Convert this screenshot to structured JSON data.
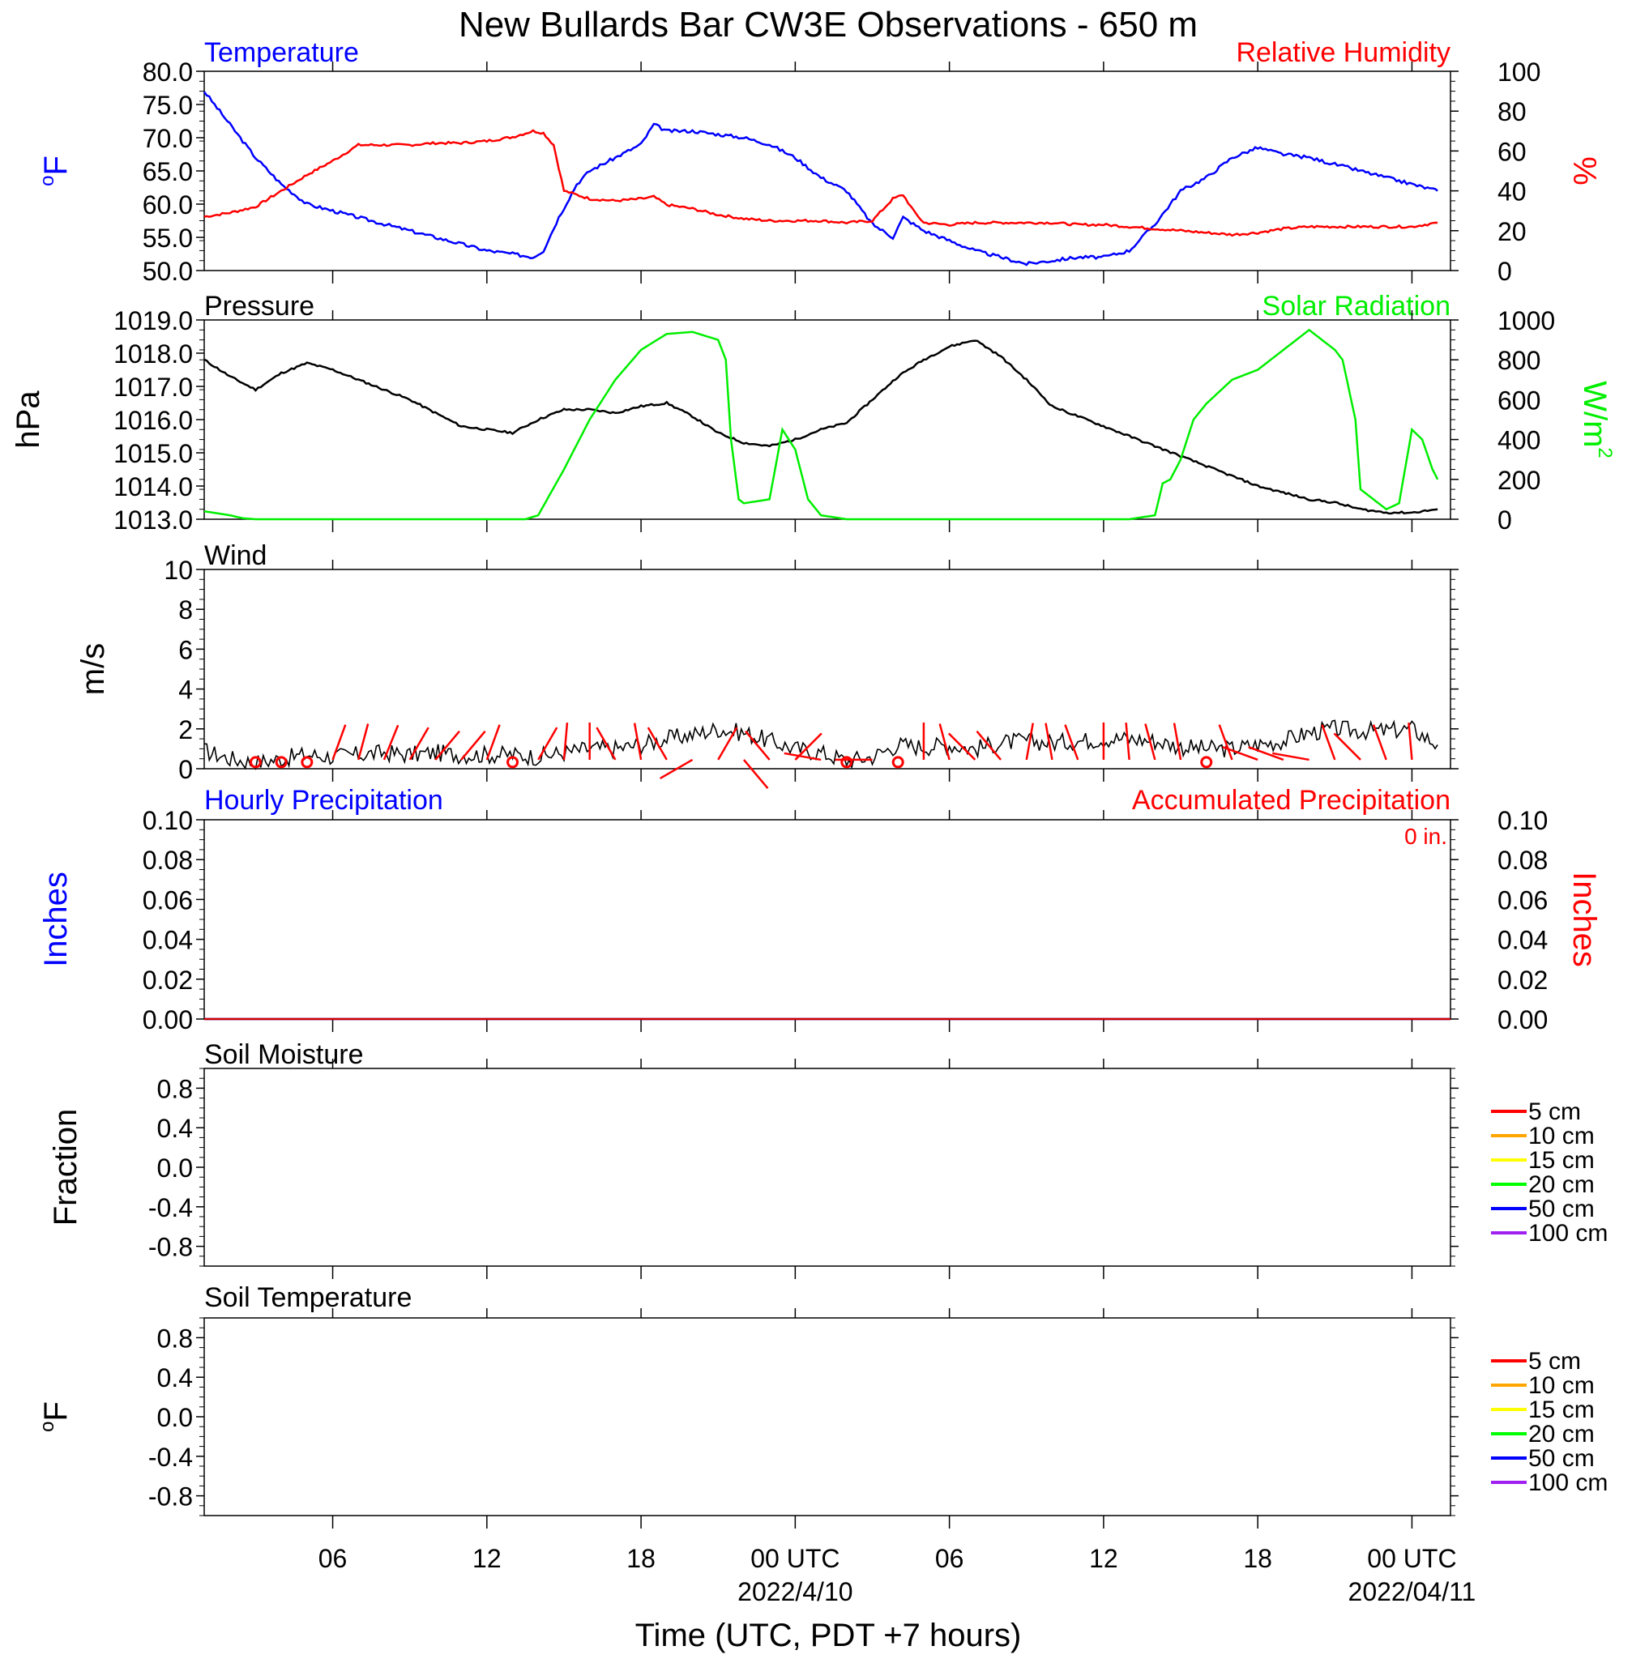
{
  "title": "New Bullards Bar CW3E Observations - 650 m",
  "x_axis": {
    "label": "Time (UTC, PDT +7 hours)",
    "range_hours": [
      0,
      48.5
    ],
    "ticks": [
      {
        "hour": 5,
        "label": "06",
        "date": ""
      },
      {
        "hour": 11,
        "label": "12",
        "date": ""
      },
      {
        "hour": 17,
        "label": "18",
        "date": ""
      },
      {
        "hour": 23,
        "label": "00 UTC",
        "date": "2022/4/10"
      },
      {
        "hour": 29,
        "label": "06",
        "date": ""
      },
      {
        "hour": 35,
        "label": "12",
        "date": ""
      },
      {
        "hour": 41,
        "label": "18",
        "date": ""
      },
      {
        "hour": 47,
        "label": "00 UTC",
        "date": "2022/04/11"
      }
    ]
  },
  "panels": {
    "temp_rh": {
      "title_left": "Temperature",
      "title_right": "Relative Humidity",
      "ylabel_left_sup": "o",
      "ylabel_left": "F",
      "ylabel_right": "%",
      "color_left": "#0000ff",
      "color_right": "#ff0000",
      "left_ticks": [
        "80.0",
        "75.0",
        "70.0",
        "65.0",
        "60.0",
        "55.0",
        "50.0"
      ],
      "right_ticks": [
        "100",
        "80",
        "60",
        "40",
        "20",
        "0"
      ]
    },
    "pressure_solar": {
      "title_left": "Pressure",
      "title_right": "Solar Radiation",
      "ylabel_left": "hPa",
      "ylabel_right": "W/m",
      "ylabel_right_sup": "2",
      "color_left": "#000000",
      "color_right": "#00ff00",
      "left_ticks": [
        "1019.0",
        "1018.0",
        "1017.0",
        "1016.0",
        "1015.0",
        "1014.0",
        "1013.0"
      ],
      "right_ticks": [
        "1000",
        "800",
        "600",
        "400",
        "200",
        "0"
      ]
    },
    "wind": {
      "title_left": "Wind",
      "ylabel_left": "m/s",
      "left_ticks": [
        "10",
        "8",
        "6",
        "4",
        "2",
        "0"
      ]
    },
    "precip": {
      "title_left": "Hourly Precipitation",
      "title_right": "Accumulated Precipitation",
      "accum_label": "0 in.",
      "ylabel_left": "Inches",
      "ylabel_right": "Inches",
      "color_left": "#0000ff",
      "color_right": "#ff0000",
      "left_ticks": [
        "0.10",
        "0.08",
        "0.06",
        "0.04",
        "0.02",
        "0.00"
      ],
      "right_ticks": [
        "0.10",
        "0.08",
        "0.06",
        "0.04",
        "0.02",
        "0.00"
      ]
    },
    "soil_moisture": {
      "title_left": "Soil Moisture",
      "ylabel_left": "Fraction",
      "left_ticks": [
        "0.8",
        "0.4",
        "0.0",
        "-0.4",
        "-0.8"
      ],
      "legend": [
        {
          "label": "5 cm",
          "color": "#ff0000"
        },
        {
          "label": "10 cm",
          "color": "#ffa500"
        },
        {
          "label": "15 cm",
          "color": "#ffff00"
        },
        {
          "label": "20 cm",
          "color": "#00ff00"
        },
        {
          "label": "50 cm",
          "color": "#0000ff"
        },
        {
          "label": "100 cm",
          "color": "#a020f0"
        }
      ]
    },
    "soil_temp": {
      "title_left": "Soil Temperature",
      "ylabel_left_sup": "o",
      "ylabel_left": "F",
      "left_ticks": [
        "0.8",
        "0.4",
        "0.0",
        "-0.4",
        "-0.8"
      ],
      "legend": [
        {
          "label": "5 cm",
          "color": "#ff0000"
        },
        {
          "label": "10 cm",
          "color": "#ffa500"
        },
        {
          "label": "15 cm",
          "color": "#ffff00"
        },
        {
          "label": "20 cm",
          "color": "#00ff00"
        },
        {
          "label": "50 cm",
          "color": "#0000ff"
        },
        {
          "label": "100 cm",
          "color": "#a020f0"
        }
      ]
    }
  },
  "chart_data": [
    {
      "type": "line",
      "name": "temperature",
      "series": [
        {
          "name": "Temperature",
          "color": "#0000ff",
          "axis": "left",
          "x": [
            0,
            1,
            2,
            2.5,
            3,
            4,
            5,
            6,
            7,
            8,
            9,
            10,
            11,
            12,
            12.8,
            13.2,
            13.8,
            14.5,
            15,
            16,
            17,
            17.5,
            18,
            19,
            20,
            21,
            22,
            23,
            24,
            25,
            26,
            26.8,
            27.2,
            27.6,
            28,
            29,
            30,
            31,
            32,
            33,
            34,
            35,
            36,
            37,
            38,
            39,
            40,
            41,
            42,
            43,
            44,
            45,
            46,
            47,
            48
          ],
          "y": [
            77,
            72,
            67,
            65,
            63,
            60,
            59,
            58,
            57,
            56,
            55,
            54,
            53,
            52.5,
            52,
            53,
            58,
            63,
            65,
            67,
            69,
            72,
            71,
            71,
            70.5,
            70,
            69,
            67,
            64,
            62,
            57,
            55,
            58,
            57,
            56,
            54.5,
            53,
            52,
            51,
            51.5,
            52,
            52,
            53,
            57,
            62,
            64,
            67,
            68.5,
            67.5,
            67,
            66,
            65,
            64,
            63,
            62
          ]
        }
      ],
      "ylim": [
        50,
        80
      ]
    },
    {
      "type": "line",
      "name": "relative_humidity",
      "series": [
        {
          "name": "Relative Humidity",
          "color": "#ff0000",
          "axis": "right",
          "x": [
            0,
            1,
            2,
            3,
            4,
            5,
            6,
            7,
            8,
            9,
            10,
            11,
            12,
            12.8,
            13.2,
            13.6,
            14,
            15,
            16,
            17,
            17.5,
            18,
            19,
            20,
            21,
            22,
            23,
            24,
            25,
            26,
            26.8,
            27.2,
            27.6,
            28,
            29,
            30,
            31,
            32,
            33,
            34,
            35,
            36,
            37,
            38,
            39,
            40,
            41,
            42,
            43,
            44,
            45,
            46,
            47,
            48
          ],
          "y": [
            27,
            29,
            32,
            40,
            48,
            55,
            63,
            63,
            63,
            64,
            64,
            65,
            67,
            70,
            69,
            63,
            40,
            36,
            35,
            36,
            37,
            33,
            31,
            28,
            26,
            25,
            25,
            25,
            24,
            25,
            36,
            38,
            30,
            24,
            23,
            24,
            24,
            24,
            24,
            23,
            23,
            22,
            21,
            20,
            19,
            18,
            19,
            21,
            22,
            22,
            22,
            22,
            22,
            24
          ]
        }
      ],
      "ylim": [
        0,
        100
      ]
    },
    {
      "type": "line",
      "name": "pressure",
      "series": [
        {
          "name": "Pressure",
          "color": "#000000",
          "axis": "left",
          "x": [
            0,
            1,
            2,
            3,
            4,
            5,
            6,
            7,
            8,
            9,
            10,
            11,
            12,
            13,
            14,
            15,
            16,
            17,
            18,
            19,
            20,
            21,
            22,
            23,
            24,
            25,
            26,
            27,
            28,
            29,
            30,
            31,
            32,
            33,
            34,
            35,
            36,
            37,
            38,
            39,
            40,
            41,
            42,
            43,
            44,
            45,
            46,
            47,
            48
          ],
          "y": [
            1017.8,
            1017.3,
            1016.9,
            1017.4,
            1017.7,
            1017.5,
            1017.2,
            1016.9,
            1016.6,
            1016.2,
            1015.8,
            1015.7,
            1015.6,
            1016.0,
            1016.3,
            1016.3,
            1016.2,
            1016.4,
            1016.5,
            1016.1,
            1015.6,
            1015.3,
            1015.2,
            1015.4,
            1015.7,
            1015.9,
            1016.6,
            1017.3,
            1017.8,
            1018.2,
            1018.4,
            1017.9,
            1017.2,
            1016.4,
            1016.1,
            1015.8,
            1015.5,
            1015.2,
            1014.9,
            1014.6,
            1014.3,
            1014.0,
            1013.8,
            1013.6,
            1013.5,
            1013.3,
            1013.2,
            1013.2,
            1013.3
          ]
        }
      ],
      "ylim": [
        1013,
        1019
      ]
    },
    {
      "type": "line",
      "name": "solar_radiation",
      "series": [
        {
          "name": "Solar Radiation",
          "color": "#00ff00",
          "axis": "right",
          "x": [
            0,
            1,
            1.5,
            2,
            12.5,
            13,
            14,
            15,
            16,
            17,
            18,
            19,
            20,
            20.3,
            20.5,
            20.8,
            21,
            22,
            22.5,
            23,
            23.5,
            24,
            24.5,
            25,
            25.5,
            26,
            36,
            37,
            37.3,
            37.6,
            38,
            38.5,
            39,
            40,
            41,
            42,
            43,
            44,
            44.3,
            44.8,
            45,
            45.5,
            46,
            46.5,
            47,
            47.4,
            47.8,
            48
          ],
          "y": [
            40,
            20,
            5,
            0,
            0,
            20,
            250,
            500,
            700,
            850,
            930,
            940,
            900,
            800,
            400,
            100,
            80,
            100,
            450,
            350,
            100,
            20,
            10,
            0,
            0,
            0,
            0,
            20,
            180,
            200,
            300,
            500,
            580,
            700,
            750,
            850,
            950,
            850,
            800,
            500,
            150,
            100,
            50,
            80,
            450,
            400,
            250,
            200
          ]
        }
      ],
      "ylim": [
        0,
        1000
      ]
    },
    {
      "type": "line",
      "name": "wind_speed",
      "series": [
        {
          "name": "Wind",
          "color": "#000000",
          "axis": "left",
          "x": [
            0,
            1,
            2,
            3,
            4,
            5,
            6,
            7,
            8,
            9,
            10,
            11,
            12,
            13,
            14,
            15,
            16,
            17,
            18,
            19,
            20,
            21,
            22,
            23,
            24,
            25,
            26,
            27,
            28,
            29,
            30,
            31,
            32,
            33,
            34,
            35,
            36,
            37,
            38,
            39,
            40,
            41,
            42,
            43,
            44,
            45,
            46,
            47,
            48
          ],
          "y": [
            0.9,
            0.5,
            0.3,
            0.5,
            0.7,
            0.6,
            0.7,
            0.8,
            0.7,
            0.8,
            0.7,
            0.7,
            0.7,
            0.6,
            0.8,
            1.0,
            1.0,
            1.2,
            1.5,
            1.7,
            2.0,
            1.8,
            1.4,
            1.0,
            0.8,
            0.4,
            0.6,
            1.2,
            1.1,
            1.2,
            1.0,
            1.3,
            1.4,
            1.3,
            1.4,
            1.5,
            1.5,
            1.4,
            1.1,
            1.0,
            1.0,
            1.2,
            1.4,
            1.8,
            2.0,
            1.9,
            1.9,
            2.0,
            1.2
          ]
        }
      ],
      "barbs": [
        {
          "hour": 2,
          "calm": true
        },
        {
          "hour": 3,
          "calm": true
        },
        {
          "hour": 4,
          "calm": true
        },
        {
          "hour": 5,
          "angle": 160
        },
        {
          "hour": 6,
          "angle": 165
        },
        {
          "hour": 7,
          "angle": 158
        },
        {
          "hour": 8,
          "angle": 150
        },
        {
          "hour": 9,
          "angle": 140
        },
        {
          "hour": 10,
          "angle": 140
        },
        {
          "hour": 11,
          "angle": 160
        },
        {
          "hour": 12,
          "calm": true
        },
        {
          "hour": 13,
          "angle": 150
        },
        {
          "hour": 14,
          "angle": 175
        },
        {
          "hour": 15,
          "angle": 180
        },
        {
          "hour": 16,
          "angle": 210
        },
        {
          "hour": 17,
          "angle": 190
        },
        {
          "hour": 18,
          "angle": 210
        },
        {
          "hour": 19,
          "angle": 300
        },
        {
          "hour": 20,
          "angle": 150
        },
        {
          "hour": 21,
          "angle": 40
        },
        {
          "hour": 22,
          "angle": 220
        },
        {
          "hour": 23,
          "angle": 135
        },
        {
          "hour": 24,
          "angle": 260
        },
        {
          "hour": 25,
          "calm": true
        },
        {
          "hour": 26,
          "angle": 270
        },
        {
          "hour": 27,
          "calm": true
        },
        {
          "hour": 28,
          "angle": 180
        },
        {
          "hour": 29,
          "angle": 195
        },
        {
          "hour": 30,
          "angle": 225
        },
        {
          "hour": 31,
          "angle": 220
        },
        {
          "hour": 32,
          "angle": 170
        },
        {
          "hour": 33,
          "angle": 190
        },
        {
          "hour": 34,
          "angle": 200
        },
        {
          "hour": 35,
          "angle": 180
        },
        {
          "hour": 36,
          "angle": 185
        },
        {
          "hour": 37,
          "angle": 195
        },
        {
          "hour": 38,
          "angle": 190
        },
        {
          "hour": 39,
          "calm": true
        },
        {
          "hour": 40,
          "angle": 200
        },
        {
          "hour": 41,
          "angle": 250
        },
        {
          "hour": 42,
          "angle": 250
        },
        {
          "hour": 43,
          "angle": 260
        },
        {
          "hour": 44,
          "angle": 200
        },
        {
          "hour": 45,
          "angle": 225
        },
        {
          "hour": 46,
          "angle": 200
        },
        {
          "hour": 47,
          "angle": 185
        }
      ],
      "ylim": [
        0,
        10
      ]
    },
    {
      "type": "line",
      "name": "precipitation",
      "series": [
        {
          "name": "Hourly Precipitation",
          "color": "#0000ff",
          "axis": "left",
          "x": [
            0,
            48.5
          ],
          "y": [
            0,
            0
          ]
        },
        {
          "name": "Accumulated Precipitation",
          "color": "#ff0000",
          "axis": "right",
          "x": [
            0,
            48.5
          ],
          "y": [
            0,
            0
          ]
        }
      ],
      "ylim": [
        0,
        0.1
      ]
    },
    {
      "type": "line",
      "name": "soil_moisture",
      "series": [],
      "ylim": [
        -1,
        1
      ]
    },
    {
      "type": "line",
      "name": "soil_temperature",
      "series": [],
      "ylim": [
        -1,
        1
      ]
    }
  ]
}
